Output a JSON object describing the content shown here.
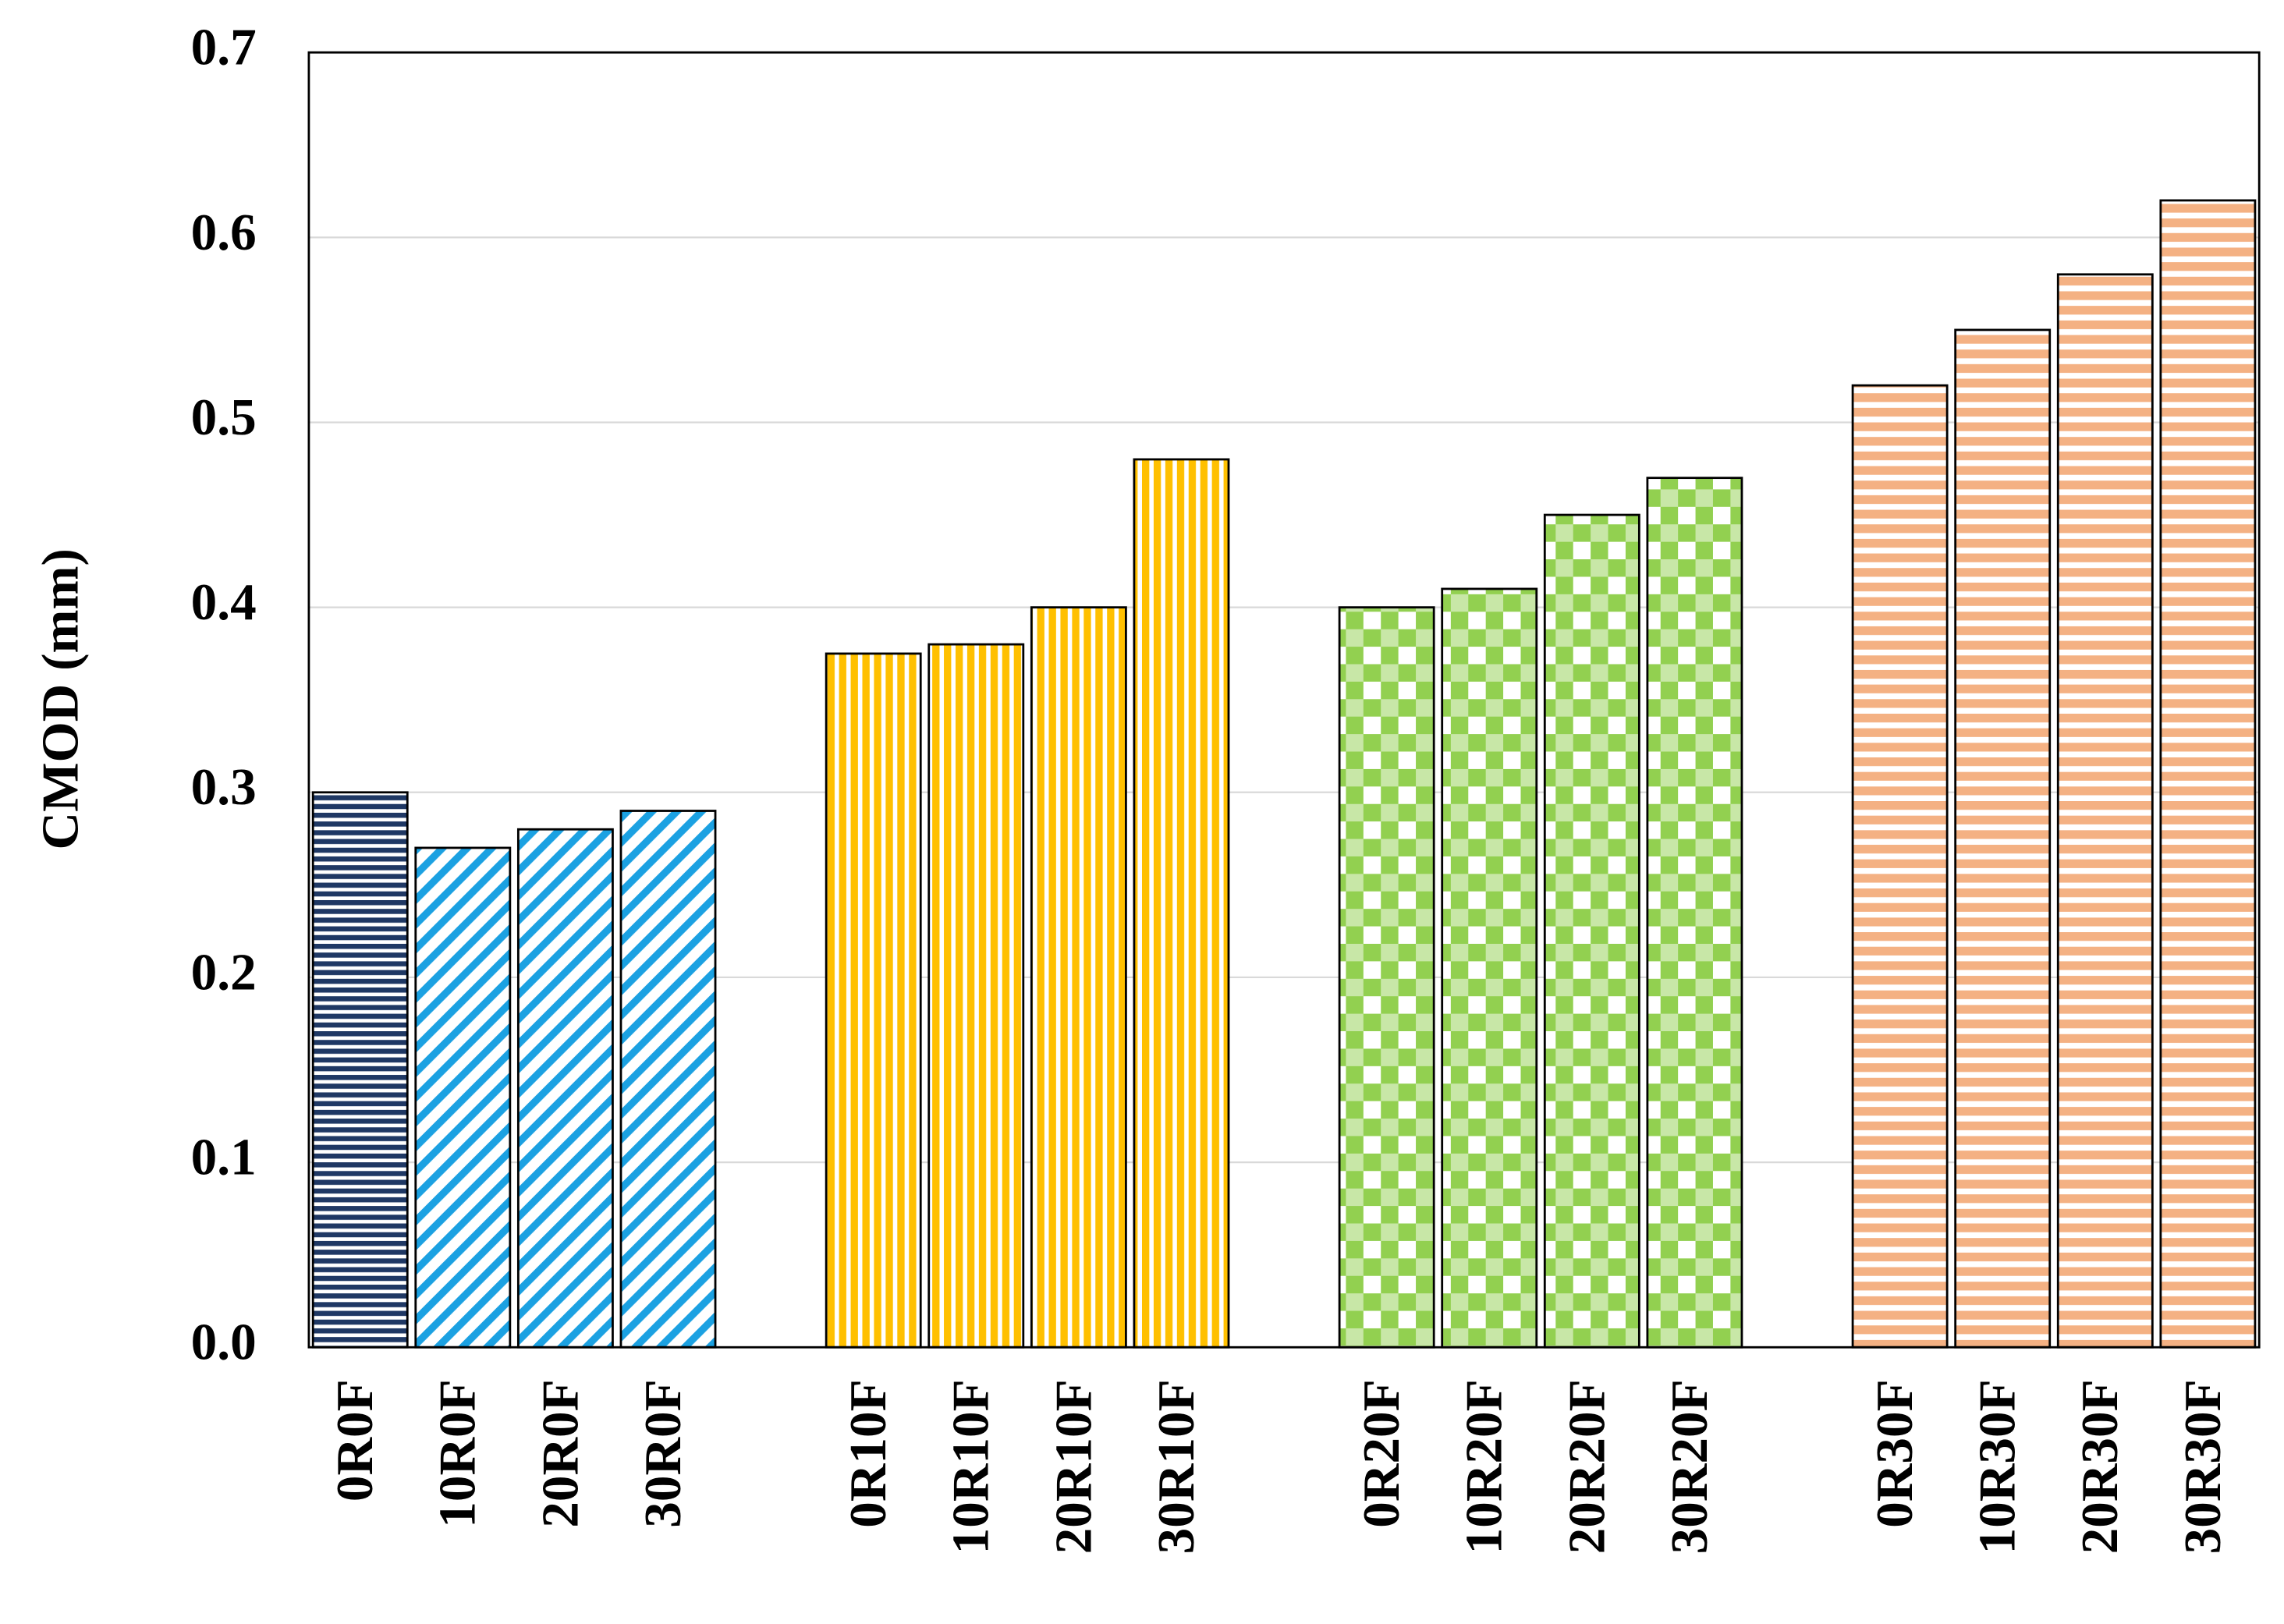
{
  "chart_data": {
    "type": "bar",
    "y_label": "CMOD (mm)",
    "categories": [
      "0R0F",
      "10R0F",
      "20R0F",
      "30R0F",
      null,
      "0R10F",
      "10R10F",
      "20R10F",
      "30R10F",
      null,
      "0R20F",
      "10R20F",
      "20R20F",
      "30R20F",
      null,
      "0R30F",
      "10R30F",
      "20R30F",
      "30R30F"
    ],
    "values": [
      0.3,
      0.27,
      0.28,
      0.29,
      null,
      0.375,
      0.38,
      0.4,
      0.48,
      null,
      0.4,
      0.41,
      0.45,
      0.47,
      null,
      0.52,
      0.55,
      0.58,
      0.62
    ],
    "colors": [
      "#1f3864",
      "#1ba1e2",
      "#1ba1e2",
      "#1ba1e2",
      null,
      "#ffc000",
      "#ffc000",
      "#ffc000",
      "#ffc000",
      null,
      "#92d050",
      "#92d050",
      "#92d050",
      "#92d050",
      null,
      "#f4b183",
      "#f4b183",
      "#f4b183",
      "#f4b183"
    ],
    "patterns": [
      "horizontal",
      "diagonal",
      "diagonal",
      "diagonal",
      null,
      "vertical",
      "vertical",
      "vertical",
      "vertical",
      null,
      "checker",
      "checker",
      "checker",
      "checker",
      null,
      "horizontal",
      "horizontal",
      "horizontal",
      "horizontal"
    ],
    "ylim": [
      0,
      0.7
    ],
    "yticks": [
      {
        "value": 0,
        "label": "0.0"
      },
      0.1,
      0.2,
      0.3,
      0.4,
      0.5,
      0.6,
      0.7
    ],
    "grid": true
  }
}
